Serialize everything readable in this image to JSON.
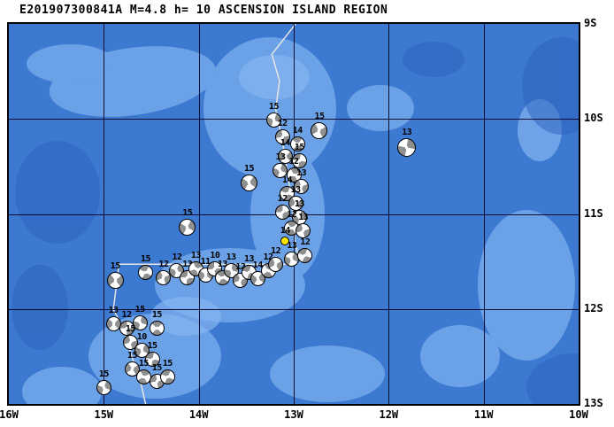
{
  "title": "E201907300841A M=4.8 h= 10 ASCENSION ISLAND REGION",
  "map": {
    "extent": {
      "lon_min": -16,
      "lon_max": -10,
      "lat_min": -13,
      "lat_max": -9
    },
    "x_ticks": [
      {
        "label": "16W",
        "lon": -16
      },
      {
        "label": "15W",
        "lon": -15
      },
      {
        "label": "14W",
        "lon": -14
      },
      {
        "label": "13W",
        "lon": -13
      },
      {
        "label": "12W",
        "lon": -12
      },
      {
        "label": "11W",
        "lon": -11
      },
      {
        "label": "10W",
        "lon": -10
      }
    ],
    "y_ticks": [
      {
        "label": "9S",
        "lat": -9
      },
      {
        "label": "10S",
        "lat": -10
      },
      {
        "label": "11S",
        "lat": -11
      },
      {
        "label": "12S",
        "lat": -12
      },
      {
        "label": "13S",
        "lat": -13
      }
    ],
    "colors": {
      "ocean": "#3c79d0",
      "light": "#6ba1e7",
      "light2": "#84b4f0",
      "dark": "#2b62bd",
      "grid": "#00001e",
      "line": "#e6e6e6",
      "ball": "#8f8f8f",
      "highlight": "#ffe400"
    },
    "plate_boundary": [
      [
        -12.98,
        -9.0
      ],
      [
        -13.23,
        -9.32
      ],
      [
        -13.15,
        -9.6
      ],
      [
        -13.19,
        -9.9
      ],
      [
        -13.12,
        -10.23
      ],
      [
        -13.06,
        -10.6
      ],
      [
        -13.01,
        -10.97
      ],
      [
        -12.99,
        -11.27
      ],
      [
        -12.95,
        -11.46
      ],
      [
        -13.02,
        -11.53
      ],
      [
        -14.84,
        -11.53
      ],
      [
        -14.9,
        -12.01
      ],
      [
        -14.79,
        -12.2
      ],
      [
        -14.72,
        -12.46
      ],
      [
        -14.62,
        -12.74
      ],
      [
        -14.56,
        -13.0
      ]
    ]
  },
  "main_event": {
    "label": "14",
    "lon": -13.09,
    "lat": -11.28
  },
  "events": [
    {
      "d": "15",
      "lon": -13.21,
      "lat": -10.01,
      "rot": 25
    },
    {
      "d": "15",
      "lon": -12.73,
      "lat": -10.12,
      "rot": 60,
      "s": 19
    },
    {
      "d": "13",
      "lon": -11.81,
      "lat": -10.3,
      "rot": 10,
      "s": 21
    },
    {
      "d": "12",
      "lon": -13.12,
      "lat": -10.19,
      "rot": 80
    },
    {
      "d": "14",
      "lon": -12.96,
      "lat": -10.26,
      "rot": 130
    },
    {
      "d": "14",
      "lon": -13.09,
      "lat": -10.39,
      "rot": 45
    },
    {
      "d": "15",
      "lon": -12.94,
      "lat": -10.44,
      "rot": 100
    },
    {
      "d": "13",
      "lon": -13.14,
      "lat": -10.54,
      "rot": 20
    },
    {
      "d": "12",
      "lon": -13.0,
      "lat": -10.59,
      "rot": 150
    },
    {
      "d": "15",
      "lon": -13.47,
      "lat": -10.67,
      "rot": 35,
      "s": 19
    },
    {
      "d": "13",
      "lon": -12.92,
      "lat": -10.71,
      "rot": 70
    },
    {
      "d": "14",
      "lon": -13.07,
      "lat": -10.79,
      "rot": 115
    },
    {
      "d": "13",
      "lon": -12.98,
      "lat": -10.89,
      "rot": 55
    },
    {
      "d": "12",
      "lon": -13.12,
      "lat": -10.98,
      "rot": 90
    },
    {
      "d": "13",
      "lon": -12.94,
      "lat": -11.04,
      "rot": 15
    },
    {
      "d": "12",
      "lon": -13.02,
      "lat": -11.15,
      "rot": 140
    },
    {
      "d": "15",
      "lon": -14.12,
      "lat": -11.14,
      "rot": 30,
      "s": 19
    },
    {
      "d": "13",
      "lon": -12.9,
      "lat": -11.18,
      "rot": 75
    },
    {
      "d": "15",
      "lon": -14.88,
      "lat": -11.7,
      "rot": 50,
      "s": 19
    },
    {
      "d": "15",
      "lon": -14.56,
      "lat": -11.62,
      "rot": 120
    },
    {
      "d": "12",
      "lon": -14.37,
      "lat": -11.67,
      "rot": 65
    },
    {
      "d": "12",
      "lon": -14.23,
      "lat": -11.6,
      "rot": 20
    },
    {
      "d": "13",
      "lon": -14.12,
      "lat": -11.67,
      "rot": 95
    },
    {
      "d": "13",
      "lon": -14.03,
      "lat": -11.58,
      "rot": 160
    },
    {
      "d": "11",
      "lon": -13.93,
      "lat": -11.64,
      "rot": 40
    },
    {
      "d": "10",
      "lon": -13.83,
      "lat": -11.58,
      "rot": 85
    },
    {
      "d": "13",
      "lon": -13.75,
      "lat": -11.67,
      "rot": 125
    },
    {
      "d": "13",
      "lon": -13.66,
      "lat": -11.6,
      "rot": 10
    },
    {
      "d": "12",
      "lon": -13.56,
      "lat": -11.7,
      "rot": 70
    },
    {
      "d": "13",
      "lon": -13.47,
      "lat": -11.62,
      "rot": 105
    },
    {
      "d": "14",
      "lon": -13.38,
      "lat": -11.68,
      "rot": 35
    },
    {
      "d": "12",
      "lon": -13.27,
      "lat": -11.6,
      "rot": 145
    },
    {
      "d": "12",
      "lon": -13.19,
      "lat": -11.53,
      "rot": 60
    },
    {
      "d": "13",
      "lon": -13.02,
      "lat": -11.48,
      "rot": 25
    },
    {
      "d": "12",
      "lon": -12.88,
      "lat": -11.44,
      "rot": 110
    },
    {
      "d": "13",
      "lon": -14.9,
      "lat": -12.16,
      "rot": 45
    },
    {
      "d": "12",
      "lon": -14.76,
      "lat": -12.2,
      "rot": 90
    },
    {
      "d": "15",
      "lon": -14.62,
      "lat": -12.15,
      "rot": 15
    },
    {
      "d": "15",
      "lon": -14.44,
      "lat": -12.2,
      "rot": 135
    },
    {
      "d": "15",
      "lon": -14.72,
      "lat": -12.35,
      "rot": 75
    },
    {
      "d": "10",
      "lon": -14.6,
      "lat": -12.44,
      "rot": 30
    },
    {
      "d": "15",
      "lon": -14.49,
      "lat": -12.53,
      "rot": 100
    },
    {
      "d": "15",
      "lon": -14.7,
      "lat": -12.63,
      "rot": 55
    },
    {
      "d": "15",
      "lon": -14.58,
      "lat": -12.72,
      "rot": 150
    },
    {
      "d": "15",
      "lon": -15.0,
      "lat": -12.83,
      "rot": 20
    },
    {
      "d": "15",
      "lon": -14.44,
      "lat": -12.76,
      "rot": 80
    },
    {
      "d": "15",
      "lon": -14.33,
      "lat": -12.72,
      "rot": 115
    }
  ]
}
